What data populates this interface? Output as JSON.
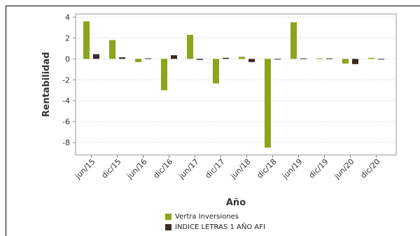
{
  "chart_data": {
    "type": "bar",
    "xlabel": "Año",
    "ylabel": "Rentabilidad",
    "ylim": [
      -9.2,
      4.3
    ],
    "yticks": [
      4,
      2,
      0,
      -2,
      -4,
      -6,
      -8
    ],
    "grid": true,
    "legend_position": "bottom",
    "categories": [
      "jun/15",
      "dic/15",
      "jun/16",
      "dic/16",
      "jun/17",
      "dic/17",
      "jun/18",
      "dic/18",
      "jun/19",
      "dic/19",
      "jun/20",
      "dic/20"
    ],
    "series": [
      {
        "name": "Vertra Inversiones",
        "color": "#8aa51a",
        "values": [
          3.6,
          1.8,
          -0.3,
          -3.0,
          2.3,
          -2.35,
          0.2,
          -8.5,
          3.5,
          0.05,
          -0.45,
          0.1
        ]
      },
      {
        "name": "INDICE LETRAS 1 AÑO AFI",
        "color": "#3a2a22",
        "values": [
          0.45,
          0.15,
          0.05,
          0.35,
          -0.1,
          0.1,
          -0.3,
          -0.05,
          0.05,
          0.05,
          -0.5,
          0.0
        ]
      }
    ]
  }
}
